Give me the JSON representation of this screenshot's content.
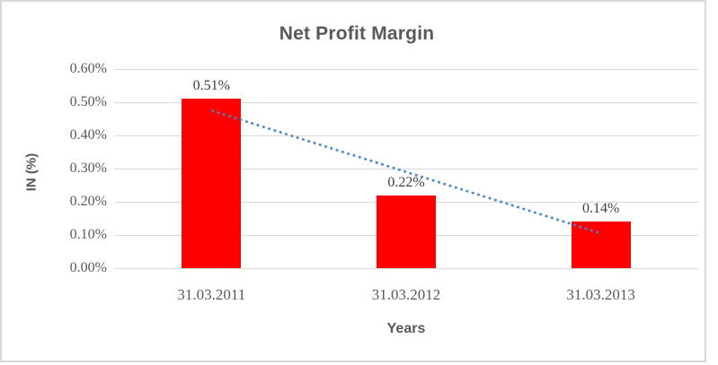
{
  "chart_data": {
    "type": "bar",
    "title": "Net Profit Margin",
    "xlabel": "Years",
    "ylabel": "IN (%)",
    "categories": [
      "31.03.2011",
      "31.03.2012",
      "31.03.2013"
    ],
    "values": [
      0.51,
      0.22,
      0.14
    ],
    "data_labels": [
      "0.51%",
      "0.22%",
      "0.14%"
    ],
    "ytick_labels": [
      "0.00%",
      "0.10%",
      "0.20%",
      "0.30%",
      "0.40%",
      "0.50%",
      "0.60%"
    ],
    "ylim": [
      0,
      0.6
    ],
    "grid": true,
    "legend": "none",
    "colors": {
      "bar": "#FF0000",
      "gridline": "#D9D9D9",
      "text": "#595959",
      "title": "#595959",
      "trendline": "#4A86C8",
      "frame_border": "#D9D9D9"
    },
    "trendline": {
      "type": "linear",
      "style": "dotted",
      "color": "#4A86C8",
      "start_value": 0.475,
      "end_value": 0.105
    }
  }
}
